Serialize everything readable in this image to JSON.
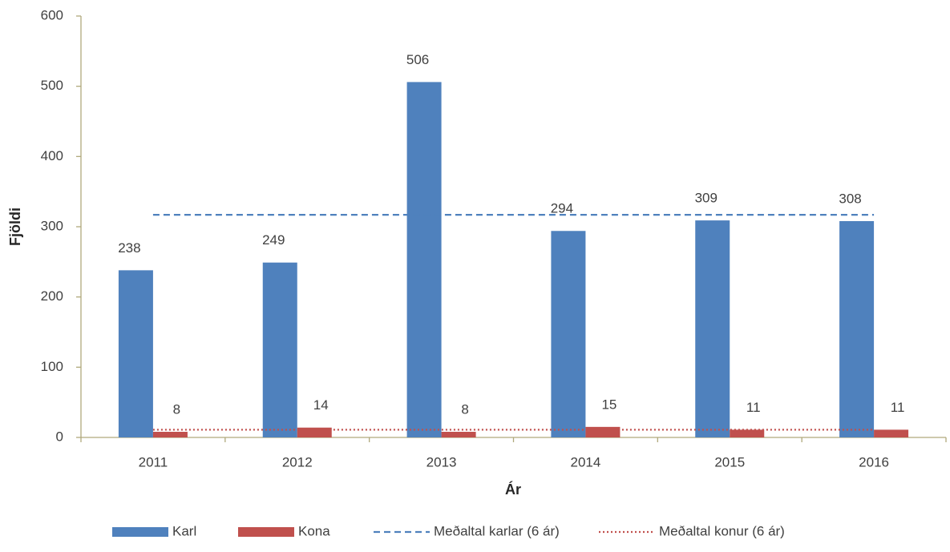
{
  "chart_data": {
    "type": "bar",
    "x_label": "Ár",
    "y_label": "Fjöldi",
    "categories": [
      "2011",
      "2012",
      "2013",
      "2014",
      "2015",
      "2016"
    ],
    "series": [
      {
        "name": "Karl",
        "type": "bar",
        "color": "#4f81bd",
        "values": [
          238,
          249,
          506,
          294,
          309,
          308
        ]
      },
      {
        "name": "Kona",
        "type": "bar",
        "color": "#c0504d",
        "values": [
          8,
          14,
          8,
          15,
          11,
          11
        ]
      },
      {
        "name": "Meðaltal karlar (6 ár)",
        "type": "line",
        "dash": "dashed",
        "color": "#4f81bd",
        "values": [
          317,
          317,
          317,
          317,
          317,
          317
        ]
      },
      {
        "name": "Meðaltal konur (6 ár)",
        "type": "line",
        "dash": "dotted",
        "color": "#c0504d",
        "values": [
          11,
          11,
          11,
          11,
          11,
          11
        ]
      }
    ],
    "ylim": [
      0,
      600
    ],
    "yticks": [
      0,
      100,
      200,
      300,
      400,
      500,
      600
    ],
    "data_labels": true
  }
}
